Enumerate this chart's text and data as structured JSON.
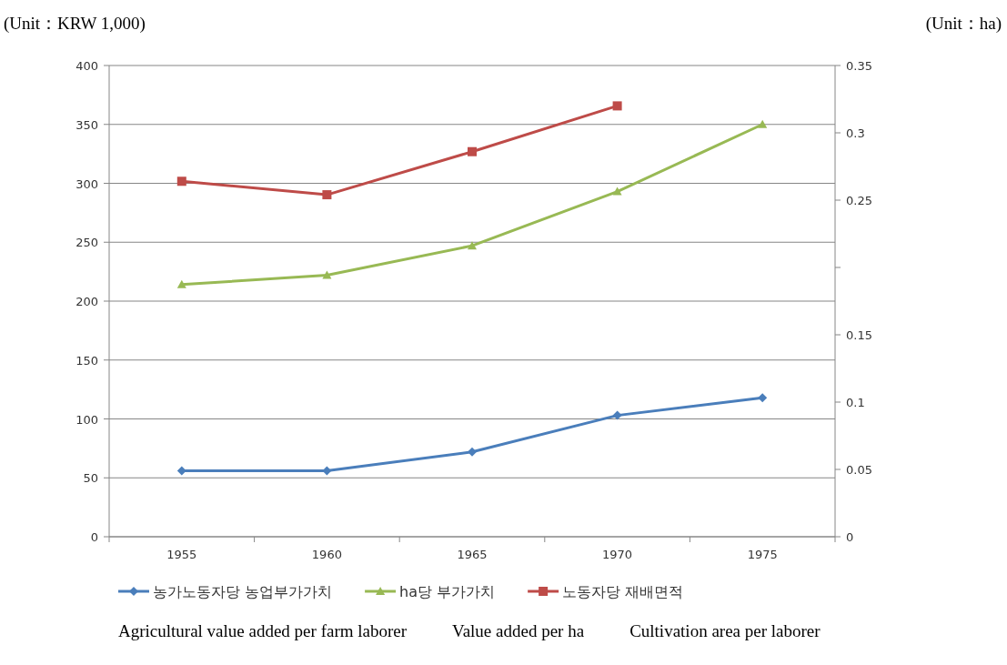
{
  "chart_data": {
    "type": "line",
    "ylabel": "(Unit：KRW 1,000)",
    "y2label": "(Unit：ha)",
    "categories": [
      "1955",
      "1960",
      "1965",
      "1970",
      "1975"
    ],
    "ylim": [
      0,
      400
    ],
    "yticks": [
      0,
      50,
      100,
      150,
      200,
      250,
      300,
      350,
      400
    ],
    "y2lim": [
      0,
      0.35
    ],
    "y2ticks": [
      0,
      0.05,
      0.1,
      0.15,
      {
        "value": 0.2,
        "label": null
      },
      0.25,
      0.3,
      0.35
    ],
    "grid": "y",
    "legend": "bottom",
    "line_style": "solid",
    "series": [
      {
        "name": "농가노동자당 농업부가가치",
        "color": "#4a7ebb",
        "marker": "diamond",
        "values": [
          56,
          56,
          72,
          103,
          118
        ]
      },
      {
        "name": "ha당 부가가치",
        "color": "#98b954",
        "marker": "triangle",
        "values": [
          214,
          222,
          247,
          293,
          350
        ]
      },
      {
        "name": "노동자당 재배면적",
        "color": "#be4b48",
        "marker": "square",
        "axis": "y2",
        "values": [
          0.264,
          0.254,
          0.286,
          0.32,
          null
        ]
      }
    ],
    "annotations": [
      "Agricultural value added per farm laborer",
      "Value added per ha",
      "Cultivation area per laborer"
    ]
  }
}
